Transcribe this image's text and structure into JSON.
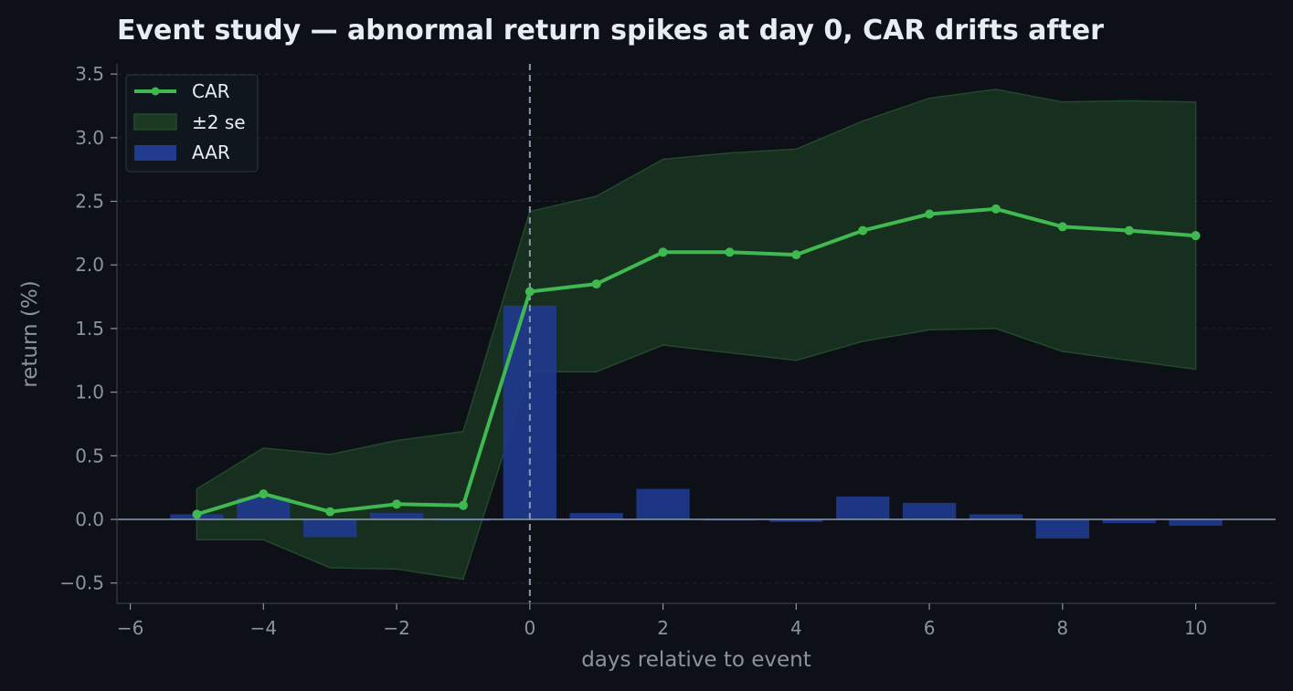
{
  "chart_data": {
    "type": "line",
    "title": "Event study — abnormal return spikes at day 0, CAR drifts after",
    "xlabel": "days relative to event",
    "ylabel": "return (%)",
    "xlim": [
      -6.2,
      11.2
    ],
    "ylim": [
      -0.66,
      3.58
    ],
    "x_ticks": [
      -6,
      -4,
      -2,
      0,
      2,
      4,
      6,
      8,
      10
    ],
    "x_tick_labels": [
      "−6",
      "−4",
      "−2",
      "0",
      "2",
      "4",
      "6",
      "8",
      "10"
    ],
    "y_ticks": [
      -0.5,
      0.0,
      0.5,
      1.0,
      1.5,
      2.0,
      2.5,
      3.0,
      3.5
    ],
    "y_tick_labels": [
      "−0.5",
      "0.0",
      "0.5",
      "1.0",
      "1.5",
      "2.0",
      "2.5",
      "3.0",
      "3.5"
    ],
    "grid": true,
    "event_day": 0,
    "legend_position": "top-left",
    "x": [
      -5,
      -4,
      -3,
      -2,
      -1,
      0,
      1,
      2,
      3,
      4,
      5,
      6,
      7,
      8,
      9,
      10
    ],
    "series": [
      {
        "name": "CAR",
        "type": "line",
        "color": "#3fb950",
        "values": [
          0.04,
          0.2,
          0.06,
          0.12,
          0.11,
          1.79,
          1.85,
          2.1,
          2.1,
          2.08,
          2.27,
          2.4,
          2.44,
          2.3,
          2.27,
          2.23
        ]
      },
      {
        "name": "±2 se",
        "type": "band",
        "color": "#1a3a22",
        "upper": [
          0.24,
          0.56,
          0.51,
          0.62,
          0.69,
          2.42,
          2.54,
          2.83,
          2.88,
          2.91,
          3.13,
          3.31,
          3.38,
          3.28,
          3.29,
          3.28
        ],
        "lower": [
          -0.16,
          -0.16,
          -0.38,
          -0.39,
          -0.47,
          1.16,
          1.16,
          1.37,
          1.31,
          1.25,
          1.4,
          1.49,
          1.5,
          1.32,
          1.25,
          1.18
        ]
      },
      {
        "name": "AAR",
        "type": "bar",
        "color": "#1f3a8f",
        "values": [
          0.04,
          0.17,
          -0.14,
          0.05,
          -0.01,
          1.68,
          0.05,
          0.24,
          0.0,
          -0.02,
          0.18,
          0.13,
          0.04,
          -0.15,
          -0.03,
          -0.05
        ]
      }
    ]
  }
}
